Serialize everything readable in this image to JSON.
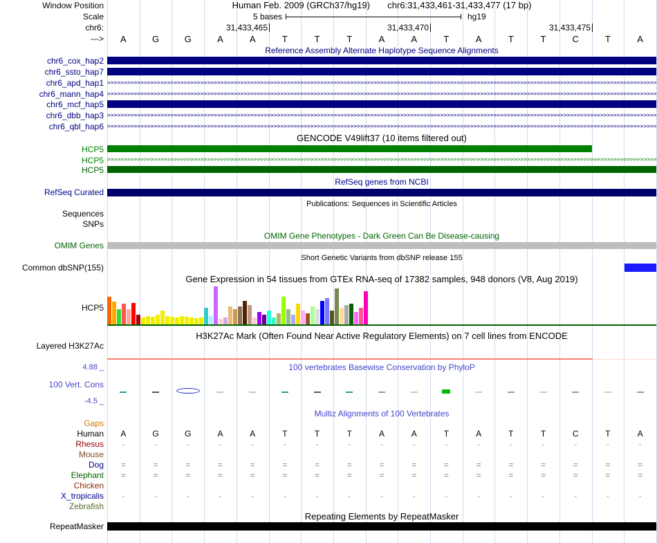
{
  "header": {
    "window_position_label": "Window Position",
    "assembly": "Human Feb. 2009 (GRCh37/hg19)",
    "position": "chr6:31,433,461-31,433,477 (17 bp)",
    "scale_label": "Scale",
    "scale_value": "5 bases",
    "scale_genome": "hg19",
    "chrom_label": "chr6:",
    "strand_label": "--->",
    "ruler_ticks": [
      {
        "label": "31,433,465",
        "base_index": 5
      },
      {
        "label": "31,433,470",
        "base_index": 10
      },
      {
        "label": "31,433,475",
        "base_index": 15
      }
    ]
  },
  "sequence": {
    "bases": [
      "A",
      "G",
      "G",
      "A",
      "A",
      "T",
      "T",
      "T",
      "A",
      "A",
      "T",
      "A",
      "T",
      "T",
      "C",
      "T",
      "A"
    ]
  },
  "haplotypes": {
    "title": "Reference Assembly Alternate Haplotype Sequence Alignments",
    "color": "#000080",
    "tracks": [
      {
        "label": "chr6_cox_hap2",
        "style": "solid"
      },
      {
        "label": "chr6_ssto_hap7",
        "style": "solid"
      },
      {
        "label": "chr6_apd_hap1",
        "style": "chevron"
      },
      {
        "label": "chr6_mann_hap4",
        "style": "chevron"
      },
      {
        "label": "chr6_mcf_hap5",
        "style": "solid"
      },
      {
        "label": "chr6_dbb_hap3",
        "style": "chevron"
      },
      {
        "label": "chr6_qbl_hap6",
        "style": "chevron"
      }
    ]
  },
  "gencode": {
    "title": "GENCODE V49lift37 (10 items filtered out)",
    "tracks": [
      {
        "label": "HCP5",
        "style": "solid",
        "color": "#008000",
        "extent": "partial"
      },
      {
        "label": "HCP5",
        "style": "chevron",
        "color": "#008000",
        "extent": "full"
      },
      {
        "label": "HCP5",
        "style": "solid",
        "color": "#006400",
        "extent": "full"
      }
    ]
  },
  "refseq": {
    "title": "RefSeq genes from NCBI",
    "track_label": "RefSeq Curated",
    "bar_color": "#00006b"
  },
  "publications": {
    "title": "Publications: Sequences in Scientific Articles",
    "track_labels": [
      "Sequences",
      "SNPs"
    ]
  },
  "omim": {
    "title": "OMIM Gene Phenotypes - Dark Green Can Be Disease-causing",
    "track_label": "OMIM Genes",
    "bar_color": "#bdbdbd"
  },
  "dbsnp": {
    "title": "Short Genetic Variants from dbSNP release 155",
    "track_label": "Common dbSNP(155)",
    "bar_color": "#1a1aff"
  },
  "gtex": {
    "title": "Gene Expression in 54 tissues from GTEx RNA-seq of 17382 samples, 948 donors (V8, Aug 2019)",
    "track_label": "HCP5",
    "gene_line_color": "#006400"
  },
  "h3k27ac": {
    "title": "H3K27Ac Mark (Often Found Near Active Regulatory Elements) on 7 cell lines from ENCODE",
    "track_label": "Layered H3K27Ac",
    "signal_color": "#fa8072",
    "signal_faint_color": "#ffd8cc"
  },
  "conservation": {
    "title": "100 vertebrates Basewise Conservation by PhyloP",
    "track_label": "100 Vert. Cons",
    "max_label": "4.88 _",
    "min_label": "-4.5 _",
    "color": "#4444cc"
  },
  "multiz": {
    "title": "Multiz Alignments of 100 Vertebrates",
    "rows": [
      {
        "label": "Gaps",
        "color": "#cc7a00",
        "content": "none"
      },
      {
        "label": "Human",
        "color": "#000000",
        "content": "sequence"
      },
      {
        "label": "Rhesus",
        "color": "#8b0000",
        "content": "dash"
      },
      {
        "label": "Mouse",
        "color": "#7a4a1e",
        "content": "none"
      },
      {
        "label": "Dog",
        "color": "#00008b",
        "content": "double-dash"
      },
      {
        "label": "Elephant",
        "color": "#006400",
        "content": "double-dash"
      },
      {
        "label": "Chicken",
        "color": "#8b2500",
        "content": "none"
      },
      {
        "label": "X_tropicalis",
        "color": "#00008b",
        "content": "dash"
      },
      {
        "label": "Zebrafish",
        "color": "#556b2f",
        "content": "none"
      }
    ]
  },
  "repeatmasker": {
    "title": "Repeating Elements by RepeatMasker",
    "track_label": "RepeatMasker",
    "bar_color": "#000000"
  },
  "chart_data": [
    {
      "type": "bar",
      "title": "Gene Expression in 54 tissues from GTEx RNA-seq of 17382 samples, 948 donors (V8, Aug 2019)",
      "gene": "HCP5",
      "n_tissues": 54,
      "values": [
        40,
        33,
        22,
        30,
        22,
        31,
        14,
        10,
        12,
        11,
        14,
        20,
        12,
        11,
        10,
        12,
        11,
        10,
        9,
        10,
        24,
        12,
        55,
        8,
        10,
        26,
        22,
        26,
        34,
        28,
        10,
        18,
        14,
        20,
        10,
        16,
        40,
        22,
        14,
        30,
        20,
        16,
        26,
        22,
        34,
        38,
        20,
        52,
        24,
        28,
        30,
        18,
        24,
        48
      ],
      "colors": [
        "#FF6600",
        "#FFAA00",
        "#33DD33",
        "#FF5555",
        "#FFAA99",
        "#FF0000",
        "#AA0000",
        "#EEEE00",
        "#EEEE00",
        "#EEEE00",
        "#EEEE00",
        "#EEEE00",
        "#EEEE00",
        "#EEEE00",
        "#EEEE00",
        "#EEEE00",
        "#EEEE00",
        "#EEEE00",
        "#EEEE00",
        "#EEEE00",
        "#33CCCC",
        "#AAEEFF",
        "#CC66FF",
        "#FFCCCC",
        "#CCAADD",
        "#EEBB77",
        "#CC9955",
        "#8B7355",
        "#552200",
        "#BB9988",
        "#FFCCCC",
        "#9900FF",
        "#660099",
        "#22FFDD",
        "#33FFC2",
        "#AABB66",
        "#99FF00",
        "#99BB88",
        "#AAAAFF",
        "#FFD700",
        "#FFAAFF",
        "#995522",
        "#AAFF99",
        "#DDDDDD",
        "#0000FF",
        "#7777FF",
        "#555522",
        "#778855",
        "#FFDD99",
        "#AAAAAA",
        "#006600",
        "#FF66FF",
        "#FF5599",
        "#FF00BB"
      ]
    },
    {
      "type": "line",
      "title": "100 vertebrates Basewise Conservation by PhyloP",
      "ylim": [
        -4.5,
        4.88
      ],
      "x_bases": [
        "A",
        "G",
        "G",
        "A",
        "A",
        "T",
        "T",
        "T",
        "A",
        "A",
        "T",
        "A",
        "T",
        "T",
        "C",
        "T",
        "A"
      ],
      "values": [
        0.2,
        0.2,
        -0.8,
        0.05,
        0.05,
        0.2,
        0.2,
        0.2,
        0.05,
        0.05,
        0.4,
        0.05,
        0.1,
        0.05,
        0.1,
        0.05,
        0.1
      ],
      "marks": [
        {
          "type": "dash",
          "color": "#2e9999"
        },
        {
          "type": "dash",
          "color": "#555555"
        },
        {
          "type": "blob",
          "color": "#2233cc"
        },
        {
          "type": "dash",
          "color": "#c8c8c8"
        },
        {
          "type": "dash",
          "color": "#c8c8c8"
        },
        {
          "type": "dash",
          "color": "#2e9999"
        },
        {
          "type": "dash",
          "color": "#555555"
        },
        {
          "type": "dash",
          "color": "#2e9999"
        },
        {
          "type": "dash",
          "color": "#9a9a9a"
        },
        {
          "type": "dash",
          "color": "#c8c8c8"
        },
        {
          "type": "bar",
          "color": "#00bb00"
        },
        {
          "type": "dash",
          "color": "#c8c8c8"
        },
        {
          "type": "dash",
          "color": "#9a9a9a"
        },
        {
          "type": "dash",
          "color": "#c8c8c8"
        },
        {
          "type": "dash",
          "color": "#9a9a9a"
        },
        {
          "type": "dash",
          "color": "#c8c8c8"
        },
        {
          "type": "dash",
          "color": "#9a9a9a"
        }
      ]
    }
  ]
}
